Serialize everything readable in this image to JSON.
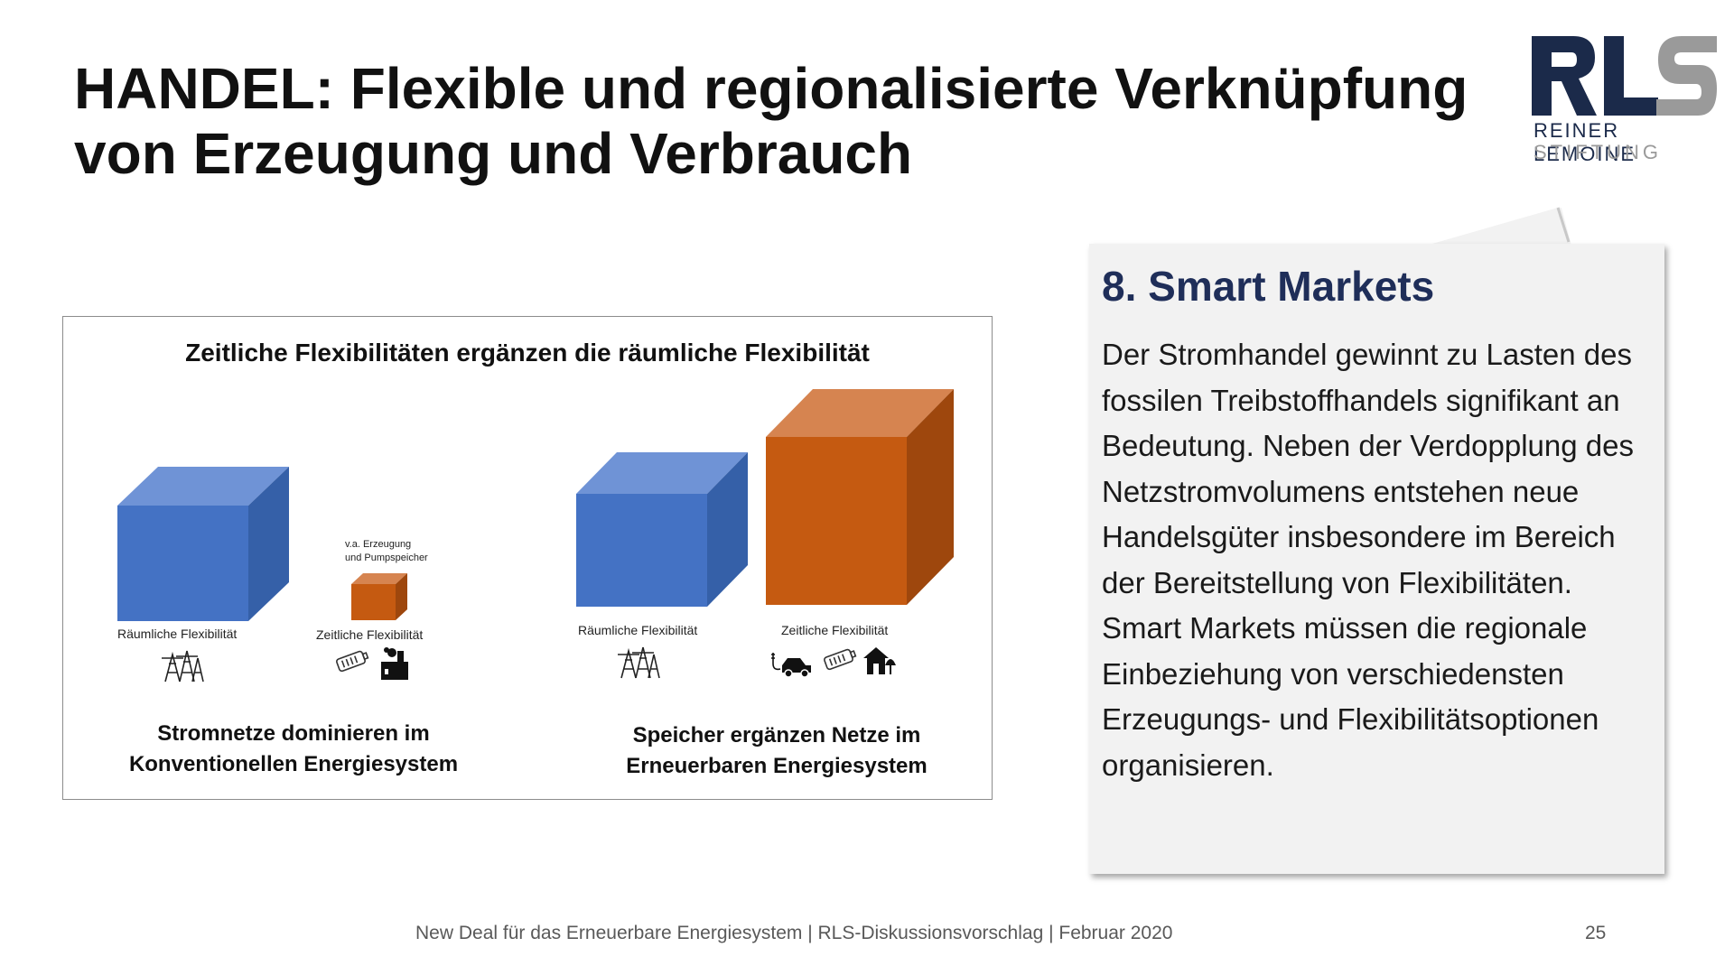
{
  "slide": {
    "title_line1": "HANDEL: Flexible und regionalisierte Verknüpfung",
    "title_line2": "von Erzeugung und Verbrauch"
  },
  "logo": {
    "mark": "RLS",
    "line1": "REINER LEMOINE",
    "line2": "STIFTUNG",
    "colors": {
      "navy": "#1b2a4a",
      "gray": "#9a9a9a"
    }
  },
  "figure": {
    "title": "Zeitliche Flexibilitäten ergänzen die räumliche Flexibilität",
    "left_panel": {
      "spatial_label": "Räumliche Flexibilität",
      "temporal_label": "Zeitliche Flexibilität",
      "note_line1": "v.a. Erzeugung",
      "note_line2": "und Pumpspeicher",
      "caption_line1": "Stromnetze dominieren im",
      "caption_line2": "Konventionellen Energiesystem",
      "icons": [
        "power-pylon-icon",
        "battery-icon",
        "power-plant-icon"
      ]
    },
    "right_panel": {
      "spatial_label": "Räumliche Flexibilität",
      "temporal_label": "Zeitliche Flexibilität",
      "caption_line1": "Speicher ergänzen Netze im",
      "caption_line2": "Erneuerbaren Energiesystem",
      "icons": [
        "power-pylon-icon",
        "electric-car-icon",
        "battery-icon",
        "house-icon"
      ]
    },
    "colors": {
      "blue": "#4472c4",
      "orange": "#c55a11"
    }
  },
  "callout": {
    "heading": "8. Smart Markets",
    "body": "Der Stromhandel gewinnt zu Lasten des fossilen Treibstoffhandels signifikant an Bedeutung. Neben der Verdopplung des Netzstromvolumens entstehen neue Handelsgüter insbesondere im Bereich der Bereitstellung von Flexibilitäten. Smart Markets müssen die regionale Einbeziehung von verschiedensten Erzeugungs- und Flexibilitätsoptionen organisieren."
  },
  "footer": {
    "text": "New Deal für das Erneuerbare Energiesystem | RLS-Diskussionsvorschlag | Februar 2020",
    "page": "25"
  }
}
